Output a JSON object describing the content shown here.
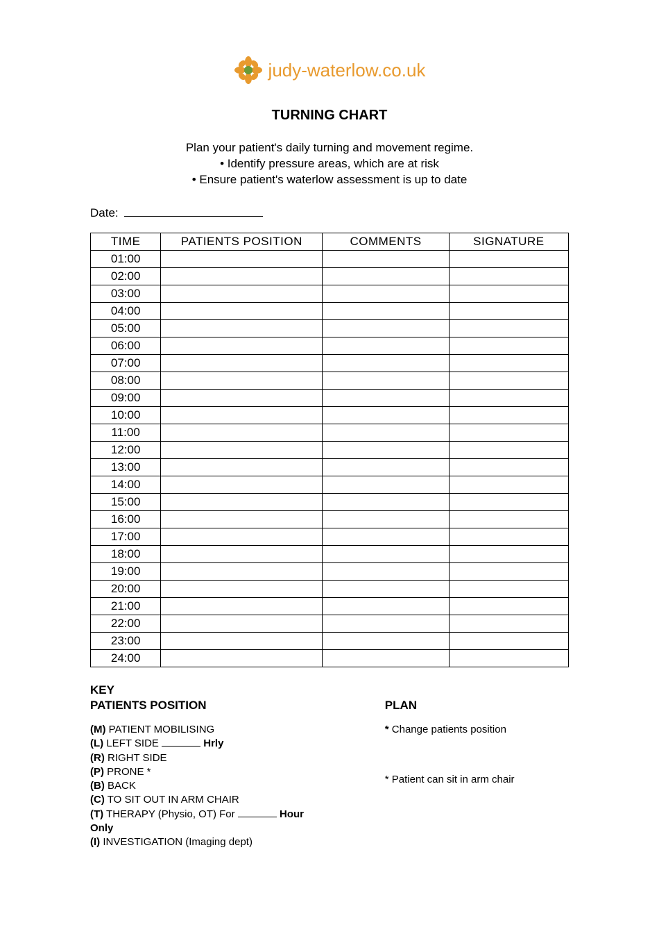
{
  "logo": {
    "text": "judy-waterlow.co.uk",
    "icon_color": "#e89a2e",
    "accent_color": "#6b9b37"
  },
  "title": "TURNING CHART",
  "instructions": {
    "intro": "Plan your patient's daily turning and movement regime.",
    "bullet1": "• Identify pressure areas, which are at risk",
    "bullet2": "• Ensure patient's waterlow assessment is up to date"
  },
  "date_label": "Date:",
  "table": {
    "headers": [
      "TIME",
      "PATIENTS POSITION",
      "COMMENTS",
      "SIGNATURE"
    ],
    "times": [
      "01:00",
      "02:00",
      "03:00",
      "04:00",
      "05:00",
      "06:00",
      "07:00",
      "08:00",
      "09:00",
      "10:00",
      "11:00",
      "12:00",
      "13:00",
      "14:00",
      "15:00",
      "16:00",
      "17:00",
      "18:00",
      "19:00",
      "20:00",
      "21:00",
      "22:00",
      "23:00",
      "24:00"
    ]
  },
  "key": {
    "heading_key": "KEY",
    "heading_position": "PATIENTS POSITION",
    "heading_plan": "PLAN",
    "items": [
      {
        "code": "(M)",
        "text": " PATIENT MOBILISING"
      },
      {
        "code": "(L)",
        "text": " LEFT SIDE ",
        "blank": true,
        "suffix_bold": " Hrly"
      },
      {
        "code": "(R)",
        "text": " RIGHT SIDE"
      },
      {
        "code": "(P)",
        "text": " PRONE *"
      },
      {
        "code": "(B)",
        "text": " BACK"
      },
      {
        "code": "(C)",
        "text": " TO SIT OUT IN ARM CHAIR"
      },
      {
        "code": "(T)",
        "text": " THERAPY (Physio, OT) For ",
        "blank": true,
        "suffix_bold": " Hour Only"
      },
      {
        "code": "(I)",
        "text": " INVESTIGATION (Imaging dept)"
      }
    ],
    "plan": [
      {
        "star_bold": true,
        "text": " Change patients position"
      },
      {
        "star_bold": false,
        "text": " Patient can sit in arm chair"
      }
    ]
  },
  "colors": {
    "text": "#000000",
    "background": "#ffffff",
    "border": "#000000",
    "logo_orange": "#e89a2e",
    "logo_green": "#6b9b37"
  },
  "typography": {
    "body_font": "Arial",
    "title_font": "Verdana",
    "table_font": "Verdana",
    "body_size_pt": 12,
    "title_size_pt": 15,
    "key_size_pt": 11
  }
}
